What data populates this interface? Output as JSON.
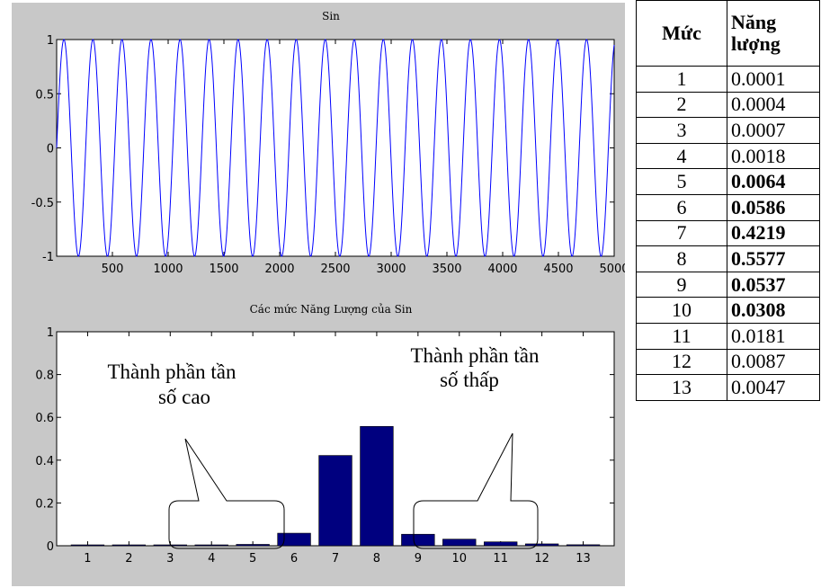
{
  "chart_data": [
    {
      "type": "line",
      "title": "Sin",
      "xlabel": "",
      "ylabel": "",
      "xlim": [
        0,
        5000
      ],
      "ylim": [
        -1,
        1
      ],
      "x_ticks": [
        "500",
        "1000",
        "1500",
        "2000",
        "2500",
        "3000",
        "3500",
        "4000",
        "4500",
        "5000"
      ],
      "y_ticks": [
        "1",
        "0.5",
        "0",
        "-0.5",
        "-1"
      ],
      "series": [
        {
          "cycles": 19.2,
          "amplitude": 1,
          "samples": 5000,
          "color": "#0000ff"
        }
      ]
    },
    {
      "type": "bar",
      "title": "Các mức Năng Lượng của Sin",
      "xlabel": "",
      "ylabel": "",
      "categories": [
        "1",
        "2",
        "3",
        "4",
        "5",
        "6",
        "7",
        "8",
        "9",
        "10",
        "11",
        "12",
        "13"
      ],
      "values": [
        0.0001,
        0.0004,
        0.0007,
        0.0018,
        0.0064,
        0.0586,
        0.4219,
        0.5577,
        0.0537,
        0.0308,
        0.0181,
        0.0087,
        0.0047
      ],
      "ylim": [
        0,
        1
      ],
      "y_ticks": [
        "0",
        "0.2",
        "0.4",
        "0.6",
        "0.8",
        "1"
      ],
      "bar_color": "#00007f",
      "annotations": [
        {
          "lines": [
            "Thành phần tần",
            "số cao"
          ]
        },
        {
          "lines": [
            "Thành phần tần",
            "số thấp"
          ]
        }
      ]
    }
  ],
  "figure": {
    "background": "#c8c8c8",
    "axes_background": "#ffffff"
  },
  "table": {
    "headers": [
      "Mức",
      "Năng lượng"
    ],
    "rows": [
      {
        "level": "1",
        "energy": "0.0001",
        "bold": false
      },
      {
        "level": "2",
        "energy": "0.0004",
        "bold": false
      },
      {
        "level": "3",
        "energy": "0.0007",
        "bold": false
      },
      {
        "level": "4",
        "energy": "0.0018",
        "bold": false
      },
      {
        "level": "5",
        "energy": "0.0064",
        "bold": true
      },
      {
        "level": "6",
        "energy": "0.0586",
        "bold": true
      },
      {
        "level": "7",
        "energy": "0.4219",
        "bold": true
      },
      {
        "level": "8",
        "energy": "0.5577",
        "bold": true
      },
      {
        "level": "9",
        "energy": "0.0537",
        "bold": true
      },
      {
        "level": "10",
        "energy": "0.0308",
        "bold": true
      },
      {
        "level": "11",
        "energy": "0.0181",
        "bold": false
      },
      {
        "level": "12",
        "energy": "0.0087",
        "bold": false
      },
      {
        "level": "13",
        "energy": "0.0047",
        "bold": false
      }
    ]
  }
}
